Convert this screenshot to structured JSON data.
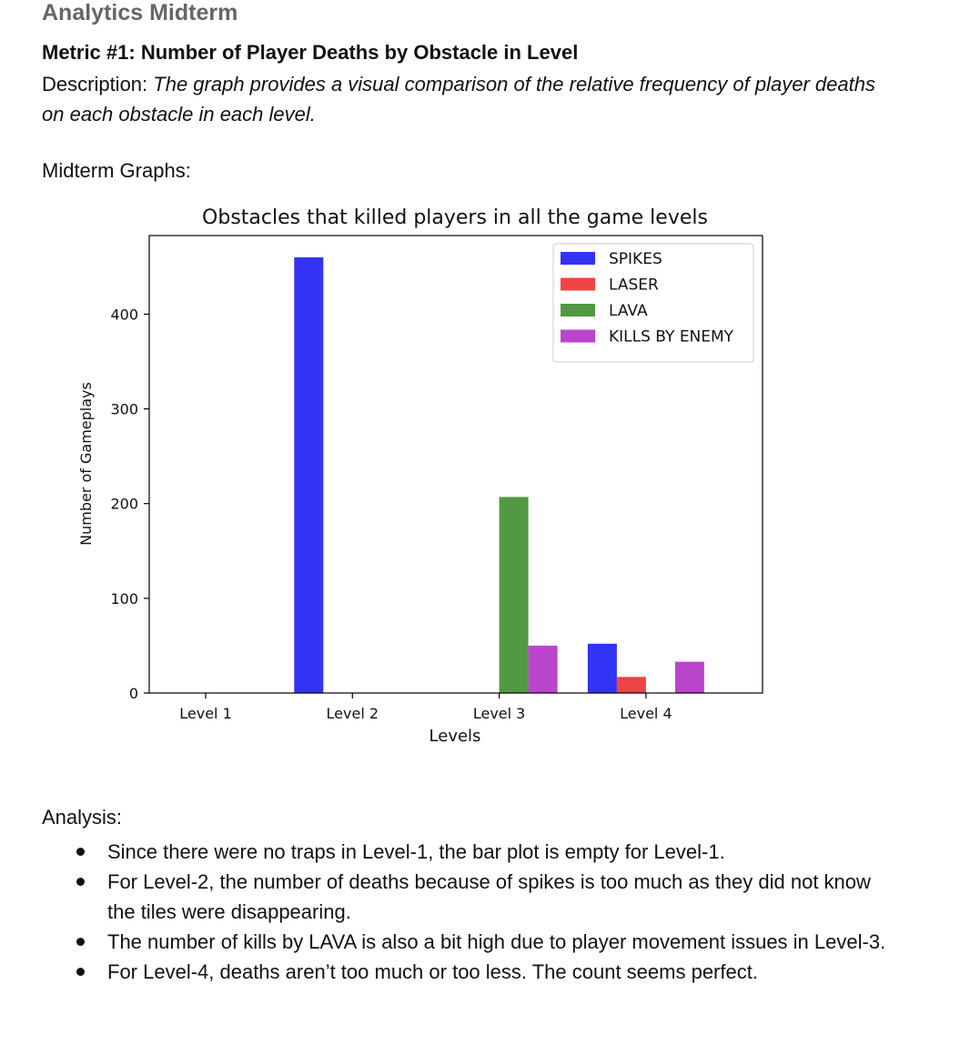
{
  "document": {
    "title": "Analytics Midterm",
    "metric_heading": "Metric #1: Number of Player Deaths by Obstacle in Level",
    "description_label": "Description:",
    "description_text": "The graph provides a visual comparison of the relative frequency of player deaths on each obstacle in each level.",
    "graphs_label": "Midterm Graphs:",
    "analysis_label": "Analysis:",
    "analysis_items": [
      "Since there were no traps in Level-1, the bar plot is empty for Level-1.",
      "For Level-2, the number of deaths because of spikes is too much as they did not know the tiles were disappearing.",
      "The number of kills by LAVA is also a bit high due to player movement issues in Level-3.",
      "For Level-4, deaths aren’t too much or too less. The count seems perfect."
    ]
  },
  "chart_data": {
    "type": "bar",
    "title": "Obstacles that killed players in all the game levels",
    "xlabel": "Levels",
    "ylabel": "Number of Gameplays",
    "categories": [
      "Level 1",
      "Level 2",
      "Level 3",
      "Level 4"
    ],
    "y_ticks": [
      0,
      100,
      200,
      300,
      400
    ],
    "ylim": [
      0,
      483
    ],
    "grid": false,
    "legend_position": "top-right",
    "series": [
      {
        "name": "SPIKES",
        "color": "#3333f5",
        "values": [
          0,
          460,
          0,
          52
        ]
      },
      {
        "name": "LASER",
        "color": "#ee4444",
        "values": [
          0,
          0,
          0,
          17
        ]
      },
      {
        "name": "LAVA",
        "color": "#529944",
        "values": [
          0,
          0,
          207,
          0
        ]
      },
      {
        "name": "KILLS BY ENEMY",
        "color": "#bb44cc",
        "values": [
          0,
          0,
          50,
          33
        ]
      }
    ]
  }
}
